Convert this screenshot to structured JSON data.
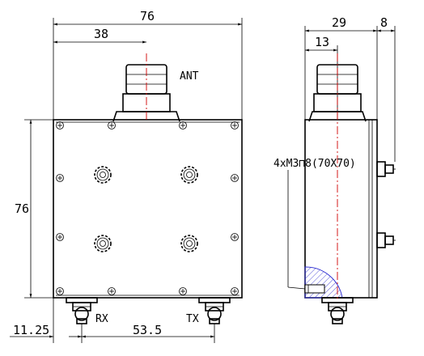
{
  "drawing": {
    "dimensions": {
      "overall_width": "76",
      "connector_offset": "38",
      "overall_height": "76",
      "side_depth": "29",
      "side_connector_offset": "13",
      "side_stud": "8",
      "port_left_offset": "11.25",
      "port_spacing": "53.5"
    },
    "labels": {
      "antenna": "ANT",
      "receive": "RX",
      "transmit": "TX",
      "mounting": "4xM3⊓8(70X70)"
    },
    "colors": {
      "outline": "#000000",
      "centerline": "#d00000",
      "section_hatch": "#2a2ad0"
    }
  }
}
